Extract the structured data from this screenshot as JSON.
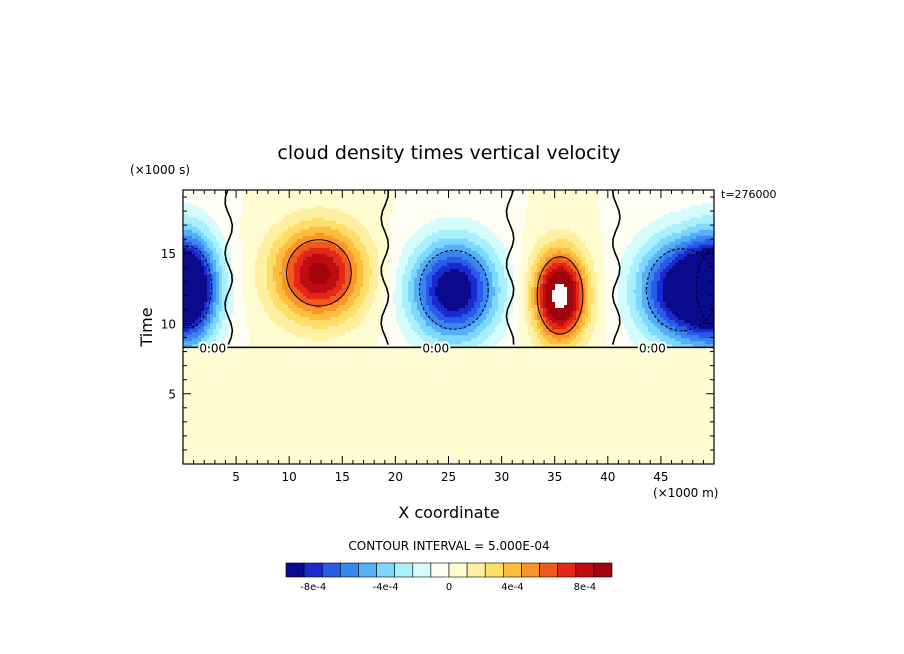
{
  "chart_data": {
    "type": "heatmap",
    "title": "cloud density times vertical velocity",
    "xlabel": "X coordinate",
    "ylabel": "Time",
    "x_units": "(×1000 m)",
    "y_units": "(×1000 s)",
    "time_stamp": "t=276000",
    "xlim": [
      0,
      50
    ],
    "ylim": [
      0,
      19.5
    ],
    "x_ticks": [
      5,
      10,
      15,
      20,
      25,
      30,
      35,
      40,
      45
    ],
    "y_ticks": [
      5,
      10,
      15
    ],
    "x_tick_labels": [
      "5",
      "10",
      "15",
      "20",
      "25",
      "30",
      "35",
      "40",
      "45"
    ],
    "y_tick_labels": [
      "5",
      "10",
      "15"
    ],
    "grid": false,
    "contour_interval_label": "CONTOUR INTERVAL = 5.000E-04",
    "zero_contour_labels": [
      {
        "text": "0.00",
        "x": 2.8,
        "y": 8.3
      },
      {
        "text": "0.00",
        "x": 23.8,
        "y": 8.3
      },
      {
        "text": "0.00",
        "x": 44.2,
        "y": 8.3
      }
    ],
    "cells": [
      {
        "name": "downdraft-left",
        "sign": -1,
        "cx": 0.5,
        "cy": 12.6,
        "rx": 4.2,
        "ry": 5.6,
        "peak": -0.0009
      },
      {
        "name": "updraft-a",
        "sign": 1,
        "cx": 12.8,
        "cy": 13.6,
        "rx": 6.2,
        "ry": 4.8,
        "peak": 0.00085
      },
      {
        "name": "downdraft-b",
        "sign": -1,
        "cx": 25.5,
        "cy": 12.4,
        "rx": 6.0,
        "ry": 5.2,
        "peak": -0.00095
      },
      {
        "name": "updraft-c",
        "sign": 1,
        "cx": 35.5,
        "cy": 12.0,
        "rx": 3.6,
        "ry": 4.6,
        "peak": 0.0011
      },
      {
        "name": "downdraft-d",
        "sign": -1,
        "cx": 47.0,
        "cy": 12.4,
        "rx": 6.2,
        "ry": 5.4,
        "peak": -0.00095
      }
    ],
    "zero_contour_boundaries_x": [
      4.3,
      19.0,
      30.8,
      40.8
    ],
    "background_value": 0,
    "colorbar": {
      "colors": [
        "#0a0a8c",
        "#1a2ad0",
        "#2a5ae8",
        "#3a86f0",
        "#56b0f8",
        "#7cd8fc",
        "#a8f0fc",
        "#d4fcfc",
        "#fefef2",
        "#fefcd0",
        "#fef0a0",
        "#fede68",
        "#fcbe3c",
        "#f8962c",
        "#f05a1c",
        "#e42818",
        "#c00c10",
        "#a0040c"
      ],
      "tick_labels": [
        "-8e-4",
        "-4e-4",
        "0",
        "4e-4",
        "8e-4"
      ],
      "tick_positions": [
        1.5,
        5.5,
        9,
        12.5,
        16.5
      ]
    }
  }
}
